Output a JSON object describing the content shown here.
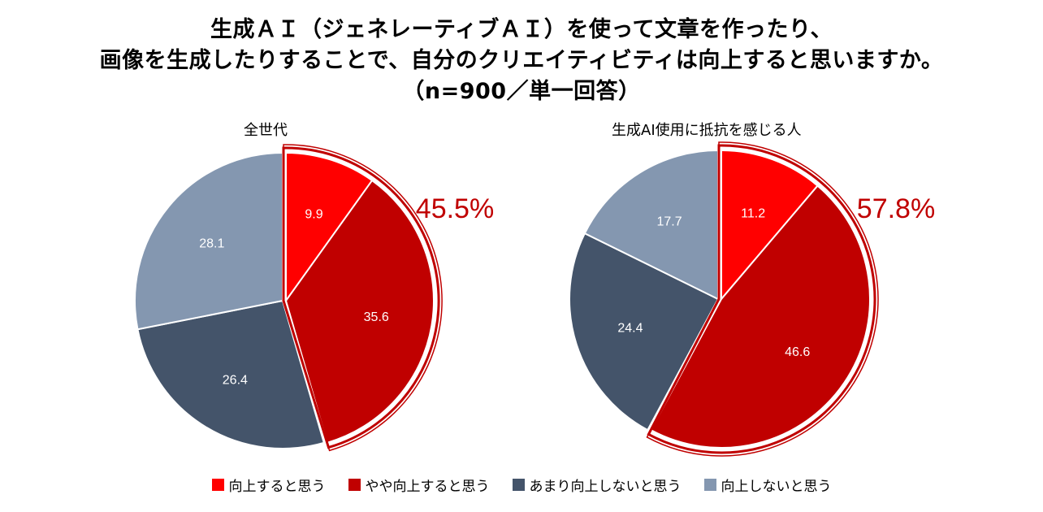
{
  "title": {
    "line1": "生成ＡＩ（ジェネレーティブＡＩ）を使って文章を作ったり、",
    "line2": "画像を生成したりすることで、自分のクリエイティビティは向上すると思いますか。",
    "line3": "（n=900／単一回答）"
  },
  "colors": {
    "strongly_agree": "#ff0000",
    "somewhat_agree": "#c00000",
    "not_much": "#44546a",
    "disagree": "#8497b0",
    "highlight": "#c00000"
  },
  "legend": [
    {
      "label": "向上すると思う",
      "color": "#ff0000"
    },
    {
      "label": "やや向上すると思う",
      "color": "#c00000"
    },
    {
      "label": "あまり向上しないと思う",
      "color": "#44546a"
    },
    {
      "label": "向上しないと思う",
      "color": "#8497b0"
    }
  ],
  "chart_data": [
    {
      "type": "pie",
      "title": "全世代",
      "categories": [
        "向上すると思う",
        "やや向上すると思う",
        "あまり向上しないと思う",
        "向上しないと思う"
      ],
      "values": [
        9.9,
        35.6,
        26.4,
        28.1
      ],
      "highlight_total": "45.5%"
    },
    {
      "type": "pie",
      "title": "生成AI使用に抵抗を感じる人",
      "categories": [
        "向上すると思う",
        "やや向上すると思う",
        "あまり向上しないと思う",
        "向上しないと思う"
      ],
      "values": [
        11.2,
        46.6,
        24.4,
        17.7
      ],
      "highlight_total": "57.8%"
    }
  ]
}
